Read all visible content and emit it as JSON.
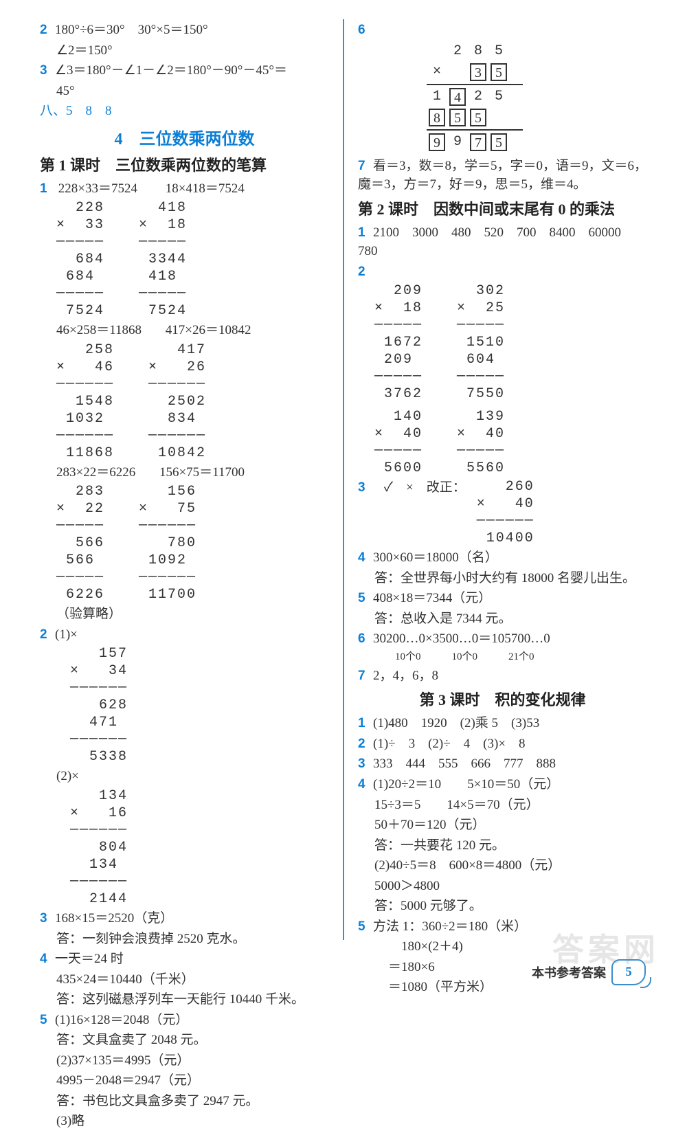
{
  "colors": {
    "accent": "#0b7fd6",
    "divider": "#3a8ecb",
    "text": "#333333",
    "bg": "#ffffff",
    "watermark": "#e6e6e6"
  },
  "fonts": {
    "body": "SimSun",
    "mono": "Courier New",
    "size_body": 19,
    "size_section": 24,
    "size_lesson": 22
  },
  "left": {
    "top": {
      "l2": "180°÷6＝30°　30°×5＝150°",
      "l2b": "∠2＝150°",
      "l3": "∠3＝180°－∠1－∠2＝180°－90°－45°＝",
      "l3b": "45°",
      "eight": "八、5　8　8"
    },
    "section": {
      "num": "4",
      "title": "三位数乘两位数"
    },
    "lesson1": "第 1 课时　三位数乘两位数的笔算",
    "q1": {
      "pairs": [
        {
          "h": "228×33＝7524",
          "v": "  228\n×  33\n─────\n  684\n 684 \n─────\n 7524",
          "h2": "18×418＝7524",
          "v2": "  418\n×  18\n─────\n 3344\n 418 \n─────\n 7524"
        },
        {
          "h": "46×258＝11868",
          "v": "   258\n×   46\n──────\n  1548\n 1032 \n──────\n 11868",
          "h2": "417×26＝10842",
          "v2": "   417\n×   26\n──────\n  2502\n  834 \n──────\n 10842"
        },
        {
          "h": "283×22＝6226",
          "v": "  283\n×  22\n─────\n  566\n 566 \n─────\n 6226",
          "h2": "156×75＝11700",
          "v2": "   156\n×   75\n──────\n   780\n 1092 \n──────\n 11700"
        }
      ],
      "note": "（验算略）"
    },
    "q2": {
      "a_label": "(1)×",
      "a": "   157\n×   34\n──────\n   628\n  471 \n──────\n  5338",
      "b_label": "(2)×",
      "b": "   134\n×   16\n──────\n   804\n  134 \n──────\n  2144"
    },
    "q3": {
      "a": "168×15＝2520（克）",
      "b": "答：一刻钟会浪费掉 2520 克水。"
    },
    "q4": {
      "a": "一天＝24 时",
      "b": "435×24＝10440（千米）",
      "c": "答：这列磁悬浮列车一天能行 10440 千米。"
    },
    "q5": {
      "a": "(1)16×128＝2048（元）",
      "b": "答：文具盒卖了 2048 元。",
      "c": "(2)37×135＝4995（元）",
      "d": "4995－2048＝2947（元）",
      "e": "答：书包比文具盒多卖了 2947 元。",
      "f": "(3)略"
    }
  },
  "right": {
    "p6": {
      "rows": [
        [
          "",
          "2",
          "8",
          "5"
        ],
        [
          "×",
          "",
          "[3]",
          "[5]"
        ],
        [
          "hr"
        ],
        [
          "1",
          "[4]",
          "2",
          "5"
        ],
        [
          "[8]",
          "[5]",
          "[5]",
          ""
        ],
        [
          "hr"
        ],
        [
          "[9]",
          "9",
          "[7]",
          "[5]"
        ]
      ]
    },
    "p7": "看＝3，数＝8，学＝5，字＝0，语＝9，文＝6，魔＝3，方＝7，好＝9，思＝5，维＝4。",
    "lesson2": "第 2 课时　因数中间或末尾有 0 的乘法",
    "q1": "2100　3000　480　520　700　8400　60000　780",
    "q2": {
      "blocks": [
        {
          "v": "  209\n×  18\n─────\n 1672\n 209 \n─────\n 3762"
        },
        {
          "v": "  302\n×  25\n─────\n 1510\n 604 \n─────\n 7550"
        },
        {
          "v": "  140\n×  40\n─────\n 5600"
        },
        {
          "v": "  139\n×  40\n─────\n 5560"
        }
      ]
    },
    "q3": {
      "a": "✓　×　改正：",
      "v": "   260\n×   40\n──────\n 10400"
    },
    "q4": {
      "a": "300×60＝18000（名）",
      "b": "答：全世界每小时大约有 18000 名婴儿出生。"
    },
    "q5": {
      "a": "408×18＝7344（元）",
      "b": "答：总收入是 7344 元。"
    },
    "q6": {
      "a": "30200…0×3500…0＝105700…0",
      "b": "　　10个0　　　10个0　　　21个0"
    },
    "q7": "2，4，6，8",
    "lesson3": "第 3 课时　积的变化规律",
    "l3": {
      "q1": "(1)480　1920　(2)乘 5　(3)53",
      "q2": "(1)÷　3　(2)÷　4　(3)×　8",
      "q3": "333　444　555　666　777　888",
      "q4a": "(1)20÷2＝10　　5×10＝50（元）",
      "q4b": "15÷3＝5　　14×5＝70（元）",
      "q4c": "50＋70＝120（元）",
      "q4d": "答：一共要花 120 元。",
      "q4e": "(2)40÷5＝8　600×8＝4800（元）",
      "q4f": "5000＞4800",
      "q4g": "答：5000 元够了。",
      "q5a": "方法 1：360÷2＝180（米）",
      "q5b": "　180×(2＋4)",
      "q5c": "＝180×6",
      "q5d": "＝1080（平方米）"
    }
  },
  "footer": {
    "label": "本书参考答案",
    "page": "5"
  },
  "watermark": "答案网"
}
